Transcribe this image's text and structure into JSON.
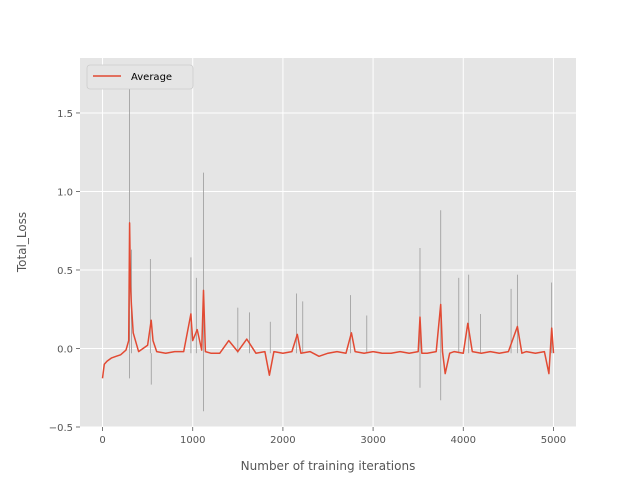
{
  "chart_data": {
    "type": "line",
    "title": "",
    "xlabel": "Number of training iterations",
    "ylabel": "Total_Loss",
    "xlim": [
      -250,
      5250
    ],
    "ylim": [
      -0.5,
      1.85
    ],
    "x_ticks": [
      0,
      1000,
      2000,
      3000,
      4000,
      5000
    ],
    "y_ticks": [
      -0.5,
      0.0,
      0.5,
      1.0,
      1.5
    ],
    "x_tick_labels": [
      "0",
      "1000",
      "2000",
      "3000",
      "4000",
      "5000"
    ],
    "y_tick_labels": [
      "−0.5",
      "0.0",
      "0.5",
      "1.0",
      "1.5"
    ],
    "grid": true,
    "legend": {
      "position": "upper-left",
      "entries": [
        "Average"
      ]
    },
    "colors": {
      "background": "#e5e5e5",
      "grid": "#ffffff",
      "average": "#e24a33",
      "raw": "#9a9a9a"
    },
    "series": [
      {
        "name": "Average",
        "role": "average",
        "points": [
          [
            0,
            -0.19
          ],
          [
            20,
            -0.1
          ],
          [
            50,
            -0.08
          ],
          [
            100,
            -0.06
          ],
          [
            150,
            -0.05
          ],
          [
            200,
            -0.04
          ],
          [
            260,
            -0.01
          ],
          [
            290,
            0.05
          ],
          [
            300,
            0.8
          ],
          [
            310,
            0.4
          ],
          [
            320,
            0.28
          ],
          [
            340,
            0.1
          ],
          [
            400,
            -0.02
          ],
          [
            500,
            0.02
          ],
          [
            540,
            0.18
          ],
          [
            560,
            0.05
          ],
          [
            600,
            -0.02
          ],
          [
            700,
            -0.03
          ],
          [
            800,
            -0.02
          ],
          [
            900,
            -0.02
          ],
          [
            980,
            0.22
          ],
          [
            1000,
            0.05
          ],
          [
            1050,
            0.12
          ],
          [
            1100,
            -0.01
          ],
          [
            1120,
            0.37
          ],
          [
            1140,
            -0.02
          ],
          [
            1200,
            -0.03
          ],
          [
            1300,
            -0.03
          ],
          [
            1400,
            0.05
          ],
          [
            1500,
            -0.02
          ],
          [
            1600,
            0.06
          ],
          [
            1700,
            -0.03
          ],
          [
            1800,
            -0.02
          ],
          [
            1850,
            -0.17
          ],
          [
            1900,
            -0.02
          ],
          [
            2000,
            -0.03
          ],
          [
            2100,
            -0.02
          ],
          [
            2160,
            0.09
          ],
          [
            2200,
            -0.03
          ],
          [
            2300,
            -0.02
          ],
          [
            2400,
            -0.05
          ],
          [
            2500,
            -0.03
          ],
          [
            2600,
            -0.02
          ],
          [
            2700,
            -0.03
          ],
          [
            2760,
            0.1
          ],
          [
            2800,
            -0.02
          ],
          [
            2900,
            -0.03
          ],
          [
            3000,
            -0.02
          ],
          [
            3100,
            -0.03
          ],
          [
            3200,
            -0.03
          ],
          [
            3300,
            -0.02
          ],
          [
            3400,
            -0.03
          ],
          [
            3500,
            -0.02
          ],
          [
            3520,
            0.2
          ],
          [
            3540,
            -0.03
          ],
          [
            3600,
            -0.03
          ],
          [
            3700,
            -0.02
          ],
          [
            3750,
            0.28
          ],
          [
            3770,
            -0.02
          ],
          [
            3800,
            -0.16
          ],
          [
            3850,
            -0.03
          ],
          [
            3900,
            -0.02
          ],
          [
            4000,
            -0.03
          ],
          [
            4050,
            0.16
          ],
          [
            4100,
            -0.02
          ],
          [
            4200,
            -0.03
          ],
          [
            4300,
            -0.02
          ],
          [
            4400,
            -0.03
          ],
          [
            4500,
            -0.02
          ],
          [
            4600,
            0.14
          ],
          [
            4650,
            -0.03
          ],
          [
            4700,
            -0.02
          ],
          [
            4800,
            -0.03
          ],
          [
            4900,
            -0.02
          ],
          [
            4950,
            -0.16
          ],
          [
            4980,
            0.13
          ],
          [
            5000,
            -0.03
          ]
        ]
      },
      {
        "name": "",
        "role": "raw",
        "points": [
          [
            300,
            1.7
          ],
          [
            320,
            0.63
          ],
          [
            530,
            0.57
          ],
          [
            980,
            0.58
          ],
          [
            1040,
            0.45
          ],
          [
            1120,
            1.12
          ],
          [
            1120,
            -0.4
          ],
          [
            1500,
            0.26
          ],
          [
            1630,
            0.23
          ],
          [
            1860,
            0.17
          ],
          [
            2150,
            0.35
          ],
          [
            2220,
            0.3
          ],
          [
            2750,
            0.34
          ],
          [
            2930,
            0.21
          ],
          [
            3520,
            0.64
          ],
          [
            3520,
            -0.25
          ],
          [
            3750,
            0.88
          ],
          [
            3750,
            -0.33
          ],
          [
            3950,
            0.45
          ],
          [
            4060,
            0.47
          ],
          [
            4190,
            0.22
          ],
          [
            4530,
            0.38
          ],
          [
            4600,
            0.47
          ],
          [
            4980,
            0.42
          ],
          [
            540,
            -0.23
          ],
          [
            300,
            -0.19
          ]
        ]
      }
    ]
  }
}
